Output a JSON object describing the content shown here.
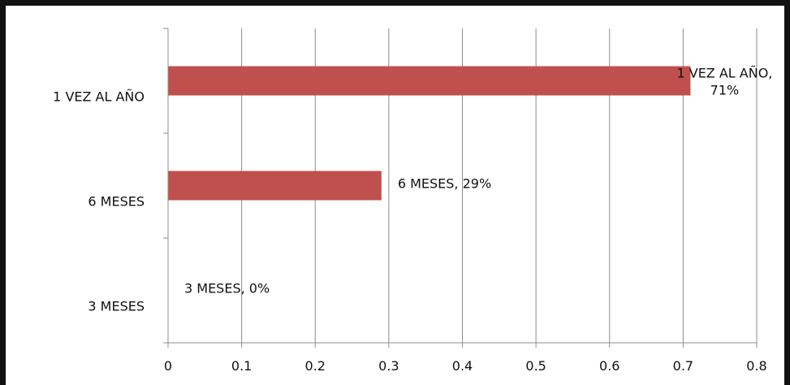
{
  "chart_data": {
    "type": "bar",
    "orientation": "horizontal",
    "categories": [
      "1 VEZ AL AÑO",
      "6 MESES",
      "3 MESES"
    ],
    "values": [
      0.71,
      0.29,
      0
    ],
    "data_labels": [
      [
        "1 VEZ AL AÑO,",
        "71%"
      ],
      [
        "6 MESES, 29%"
      ],
      [
        "3 MESES, 0%"
      ]
    ],
    "x_ticks": [
      "0",
      "0.1",
      "0.2",
      "0.3",
      "0.4",
      "0.5",
      "0.6",
      "0.7",
      "0.8"
    ],
    "xlim": [
      0,
      0.8
    ],
    "bar_color": "#c0504d",
    "grid": "vertical",
    "title": "",
    "xlabel": "",
    "ylabel": ""
  }
}
